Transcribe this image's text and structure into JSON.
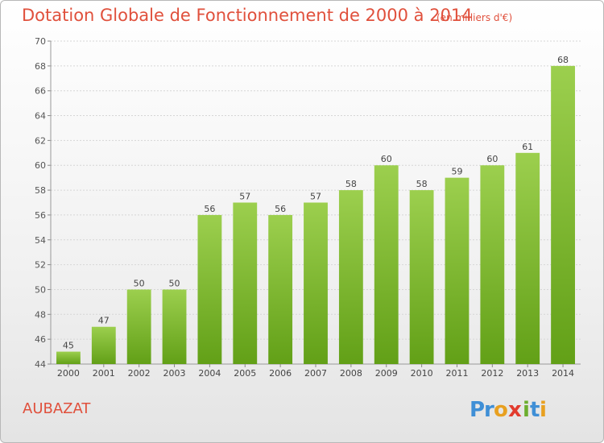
{
  "header": {
    "title": "Dotation Globale de Fonctionnement de 2000 à 2014",
    "subtitle": "(en milliers d'€)"
  },
  "footer": {
    "commune": "AUBAZAT",
    "logo_text": "Proxiti"
  },
  "colors": {
    "accent": "#e0503c",
    "bar_top": "#9ccf4e",
    "bar_bottom": "#62a017"
  },
  "chart_data": {
    "type": "bar",
    "categories": [
      "2000",
      "2001",
      "2002",
      "2003",
      "2004",
      "2005",
      "2006",
      "2007",
      "2008",
      "2009",
      "2010",
      "2011",
      "2012",
      "2013",
      "2014"
    ],
    "values": [
      45,
      47,
      50,
      50,
      56,
      57,
      56,
      57,
      58,
      60,
      58,
      59,
      60,
      61,
      68
    ],
    "title": "Dotation Globale de Fonctionnement de 2000 à 2014",
    "subtitle": "(en milliers d'€)",
    "xlabel": "",
    "ylabel": "",
    "ylim": [
      44,
      70
    ],
    "yticks": [
      44,
      46,
      48,
      50,
      52,
      54,
      56,
      58,
      60,
      62,
      64,
      66,
      68,
      70
    ],
    "grid": true,
    "data_labels": true
  }
}
